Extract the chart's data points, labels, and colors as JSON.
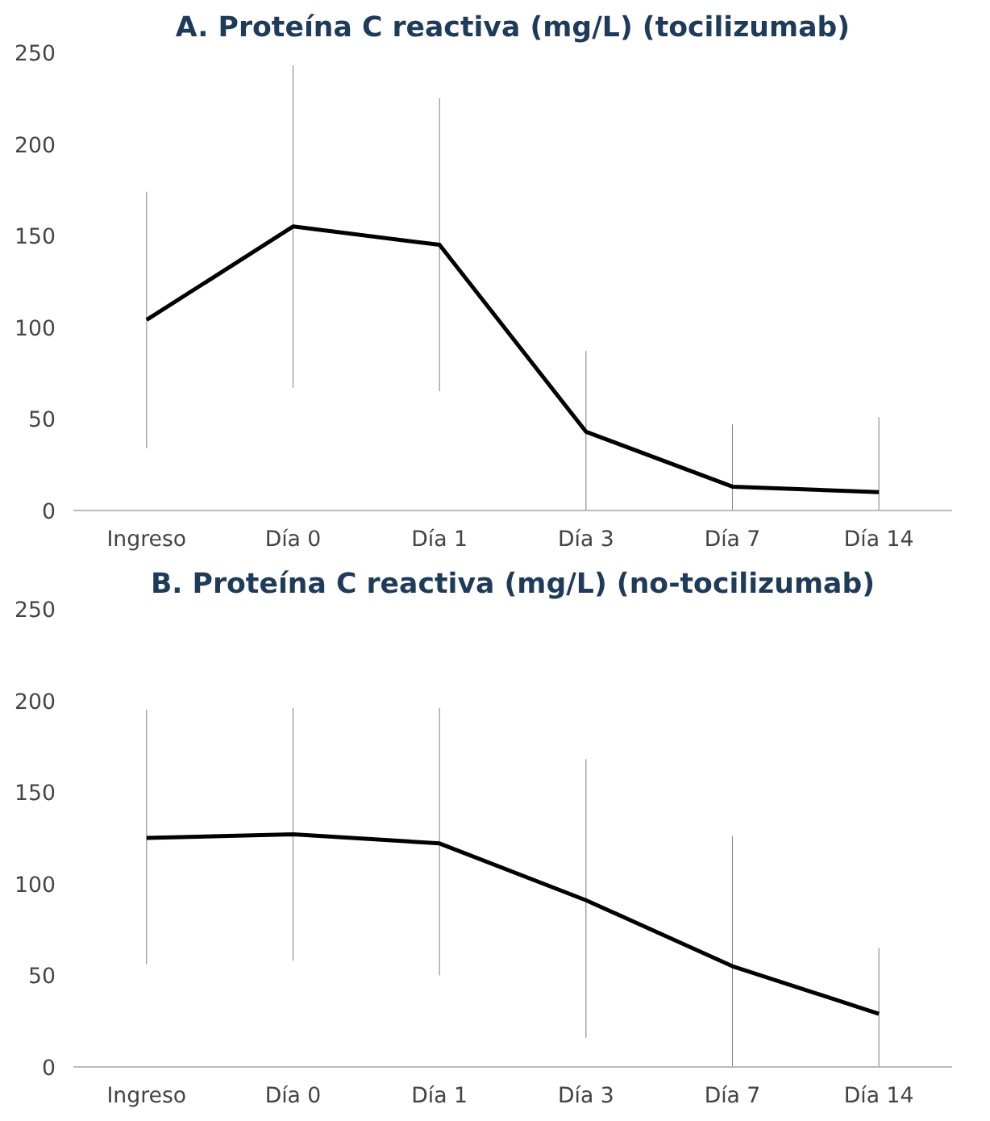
{
  "chart_data": [
    {
      "type": "line",
      "title": "A. Proteína C reactiva (mg/L) (tocilizumab)",
      "categories": [
        "Ingreso",
        "Día 0",
        "Día 1",
        "Día 3",
        "Día 7",
        "Día 14"
      ],
      "series": [
        {
          "color": "#000000",
          "values": [
            104,
            155,
            145,
            43,
            13,
            10
          ],
          "errors": [
            [
              34,
              174
            ],
            [
              67,
              243
            ],
            [
              65,
              225
            ],
            [
              0,
              87
            ],
            [
              0,
              47
            ],
            [
              0,
              51
            ]
          ]
        }
      ],
      "ylim": [
        0,
        250
      ],
      "yticks": [
        0,
        50,
        100,
        150,
        200,
        250
      ],
      "grid": false,
      "marker": "none",
      "line_style": "solid"
    },
    {
      "type": "line",
      "title": "B. Proteína C reactiva (mg/L) (no-tocilizumab)",
      "categories": [
        "Ingreso",
        "Día 0",
        "Día 1",
        "Día 3",
        "Día 7",
        "Día 14"
      ],
      "series": [
        {
          "color": "#000000",
          "values": [
            125,
            127,
            122,
            91,
            55,
            29
          ],
          "errors": [
            [
              56,
              195
            ],
            [
              58,
              196
            ],
            [
              50,
              196
            ],
            [
              16,
              168
            ],
            [
              0,
              126
            ],
            [
              0,
              65
            ]
          ]
        }
      ],
      "ylim": [
        0,
        250
      ],
      "yticks": [
        0,
        50,
        100,
        150,
        200,
        250
      ],
      "grid": false,
      "marker": "none",
      "line_style": "solid"
    }
  ]
}
